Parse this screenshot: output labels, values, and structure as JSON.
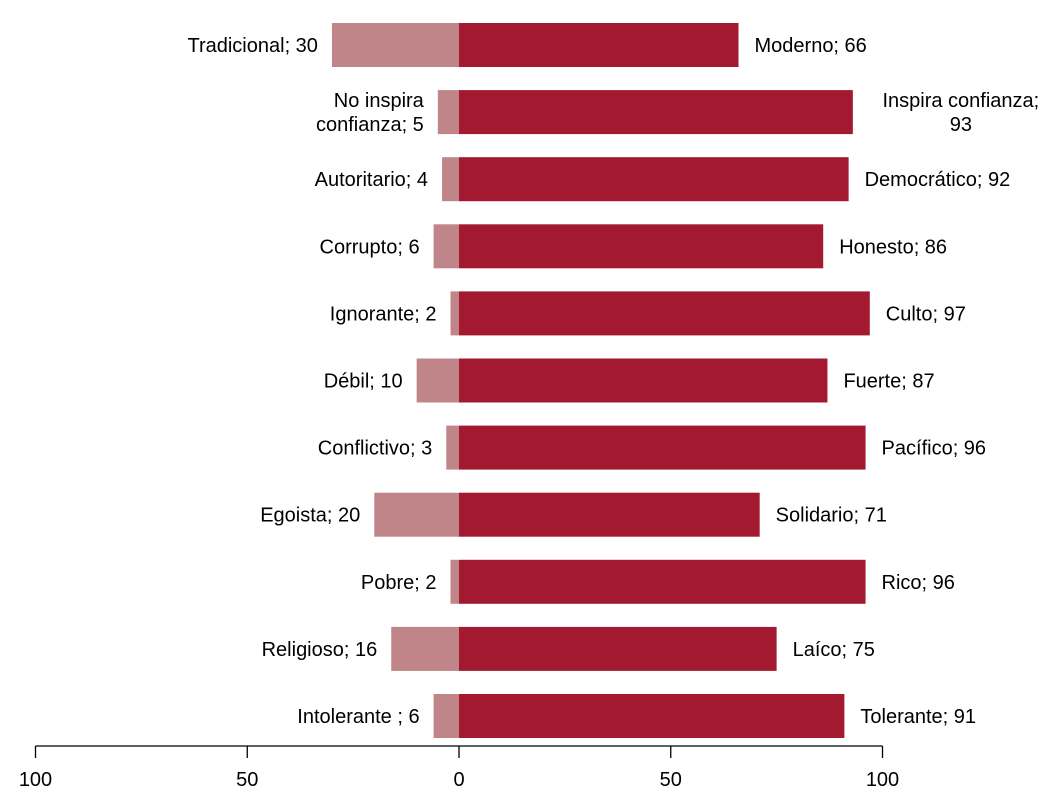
{
  "chart_data": {
    "type": "bar",
    "orientation": "horizontal-diverging",
    "title": "",
    "xlabel": "",
    "ylabel": "",
    "xlim": [
      -100,
      100
    ],
    "x_ticks": [
      -100,
      -50,
      0,
      50,
      100
    ],
    "x_tick_labels": [
      "100",
      "50",
      "0",
      "50",
      "100"
    ],
    "grid": false,
    "legend": "none",
    "rows": [
      {
        "left": "Tradicional",
        "left_value": 30,
        "left_label": "Tradicional; 30",
        "right": "Moderno",
        "right_value": 66,
        "right_label": "Moderno; 66"
      },
      {
        "left": "No inspira confianza",
        "left_value": 5,
        "left_label": "No inspira\nconfianza; 5",
        "right": "Inspira confianza",
        "right_value": 93,
        "right_label": "Inspira confianza;\n93"
      },
      {
        "left": "Autoritario",
        "left_value": 4,
        "left_label": "Autoritario; 4",
        "right": "Democrático",
        "right_value": 92,
        "right_label": "Democrático; 92"
      },
      {
        "left": "Corrupto",
        "left_value": 6,
        "left_label": "Corrupto; 6",
        "right": "Honesto",
        "right_value": 86,
        "right_label": "Honesto; 86"
      },
      {
        "left": "Ignorante",
        "left_value": 2,
        "left_label": "Ignorante; 2",
        "right": "Culto",
        "right_value": 97,
        "right_label": "Culto; 97"
      },
      {
        "left": "Débil",
        "left_value": 10,
        "left_label": "Débil; 10",
        "right": "Fuerte",
        "right_value": 87,
        "right_label": "Fuerte; 87"
      },
      {
        "left": "Conflictivo",
        "left_value": 3,
        "left_label": "Conflictivo; 3",
        "right": "Pacífico",
        "right_value": 96,
        "right_label": "Pacífico; 96"
      },
      {
        "left": "Egoista",
        "left_value": 20,
        "left_label": "Egoista; 20",
        "right": "Solidario",
        "right_value": 71,
        "right_label": "Solidario; 71"
      },
      {
        "left": "Pobre",
        "left_value": 2,
        "left_label": "Pobre; 2",
        "right": "Rico",
        "right_value": 96,
        "right_label": "Rico; 96"
      },
      {
        "left": "Religioso",
        "left_value": 16,
        "left_label": "Religioso; 16",
        "right": "Laíco",
        "right_value": 75,
        "right_label": "Laíco; 75"
      },
      {
        "left": "Intolerante",
        "left_value": 6,
        "left_label": "Intolerante ; 6",
        "right": "Tolerante",
        "right_value": 91,
        "right_label": "Tolerante; 91"
      }
    ],
    "colors": {
      "left_bar": "#c08588",
      "right_bar": "#a31a30",
      "axis": "#000000"
    }
  }
}
